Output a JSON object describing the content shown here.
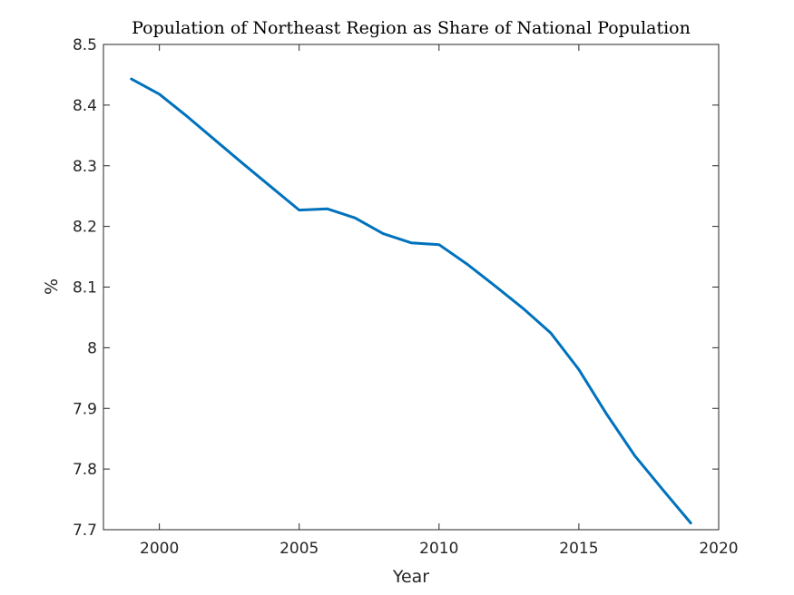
{
  "chart_data": {
    "type": "line",
    "title": "Population of Northeast Region as Share of National Population",
    "xlabel": "Year",
    "ylabel": "%",
    "xlim": [
      1998,
      2020
    ],
    "ylim": [
      7.7,
      8.5
    ],
    "xticks": [
      2000,
      2005,
      2010,
      2015,
      2020
    ],
    "xtick_labels": [
      "2000",
      "2005",
      "2010",
      "2015",
      "2020"
    ],
    "yticks": [
      7.7,
      7.8,
      7.9,
      8.0,
      8.1,
      8.2,
      8.3,
      8.4,
      8.5
    ],
    "ytick_labels": [
      "7.7",
      "7.8",
      "7.9",
      "8",
      "8.1",
      "8.2",
      "8.3",
      "8.4",
      "8.5"
    ],
    "grid": false,
    "series": [
      {
        "color": "#0072bd",
        "x": [
          1999,
          2000,
          2001,
          2002,
          2003,
          2004,
          2005,
          2006,
          2007,
          2008,
          2009,
          2010,
          2011,
          2012,
          2013,
          2014,
          2015,
          2016,
          2017,
          2018,
          2019
        ],
        "values": [
          8.443,
          8.418,
          8.381,
          8.342,
          8.303,
          8.265,
          8.227,
          8.229,
          8.214,
          8.188,
          8.173,
          8.17,
          8.138,
          8.102,
          8.065,
          8.024,
          7.964,
          7.89,
          7.822,
          7.766,
          7.711
        ]
      }
    ]
  }
}
